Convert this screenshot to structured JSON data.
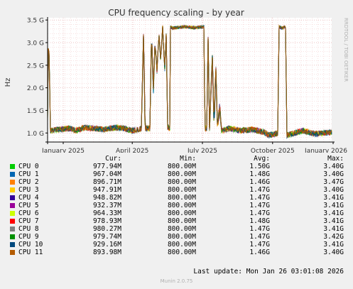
{
  "chart_data": {
    "type": "line",
    "title": "CPU frequency scaling - by year",
    "ylabel": "Hz",
    "side_label": "RRDTOOL / TOBI OETIKER",
    "yticks": [
      {
        "v": 1.0,
        "label": "1.0 G"
      },
      {
        "v": 1.5,
        "label": "1.5 G"
      },
      {
        "v": 2.0,
        "label": "2.0 G"
      },
      {
        "v": 2.5,
        "label": "2.5 G"
      },
      {
        "v": 3.0,
        "label": "3.0 G"
      },
      {
        "v": 3.5,
        "label": "3.5 G"
      }
    ],
    "xticks": [
      {
        "label": "January 2025",
        "t": 0.055
      },
      {
        "label": "April 2025",
        "t": 0.298
      },
      {
        "label": "July 2025",
        "t": 0.545
      },
      {
        "label": "October 2025",
        "t": 0.792
      },
      {
        "label": "January 2026",
        "t": 1.037
      }
    ],
    "ylim": [
      0.8,
      3.55
    ],
    "grid": true,
    "series": [
      {
        "name": "CPU 0",
        "color": "#00cc00"
      },
      {
        "name": "CPU 1",
        "color": "#0066b3"
      },
      {
        "name": "CPU 2",
        "color": "#ff8000"
      },
      {
        "name": "CPU 3",
        "color": "#ffcc00"
      },
      {
        "name": "CPU 4",
        "color": "#330099"
      },
      {
        "name": "CPU 5",
        "color": "#990099"
      },
      {
        "name": "CPU 6",
        "color": "#ccff00"
      },
      {
        "name": "CPU 7",
        "color": "#ff0000"
      },
      {
        "name": "CPU 8",
        "color": "#808080"
      },
      {
        "name": "CPU 9",
        "color": "#008f00"
      },
      {
        "name": "CPU 10",
        "color": "#00487d"
      },
      {
        "name": "CPU 11",
        "color": "#b35a00"
      }
    ],
    "profile": [
      [
        0.0,
        1.35
      ],
      [
        0.003,
        3.15
      ],
      [
        0.006,
        2.6
      ],
      [
        0.01,
        1.05
      ],
      [
        0.04,
        1.08
      ],
      [
        0.08,
        1.1
      ],
      [
        0.1,
        1.05
      ],
      [
        0.13,
        1.12
      ],
      [
        0.16,
        1.1
      ],
      [
        0.2,
        1.08
      ],
      [
        0.24,
        1.12
      ],
      [
        0.27,
        1.1
      ],
      [
        0.3,
        1.05
      ],
      [
        0.33,
        1.1
      ],
      [
        0.338,
        3.3
      ],
      [
        0.343,
        1.1
      ],
      [
        0.36,
        1.1
      ],
      [
        0.366,
        3.3
      ],
      [
        0.372,
        1.9
      ],
      [
        0.378,
        3.0
      ],
      [
        0.385,
        2.4
      ],
      [
        0.392,
        3.2
      ],
      [
        0.398,
        2.6
      ],
      [
        0.405,
        3.35
      ],
      [
        0.412,
        2.4
      ],
      [
        0.418,
        3.25
      ],
      [
        0.422,
        1.15
      ],
      [
        0.43,
        1.1
      ],
      [
        0.432,
        3.35
      ],
      [
        0.44,
        3.32
      ],
      [
        0.48,
        3.35
      ],
      [
        0.52,
        3.33
      ],
      [
        0.55,
        3.35
      ],
      [
        0.554,
        1.1
      ],
      [
        0.56,
        1.1
      ],
      [
        0.565,
        3.1
      ],
      [
        0.57,
        1.1
      ],
      [
        0.58,
        2.7
      ],
      [
        0.586,
        1.1
      ],
      [
        0.592,
        2.5
      ],
      [
        0.598,
        1.1
      ],
      [
        0.606,
        1.6
      ],
      [
        0.612,
        1.05
      ],
      [
        0.64,
        1.1
      ],
      [
        0.68,
        1.05
      ],
      [
        0.72,
        1.08
      ],
      [
        0.76,
        1.02
      ],
      [
        0.78,
        0.95
      ],
      [
        0.8,
        0.98
      ],
      [
        0.81,
        1.0
      ],
      [
        0.815,
        3.35
      ],
      [
        0.825,
        3.32
      ],
      [
        0.838,
        3.35
      ],
      [
        0.842,
        0.95
      ],
      [
        0.87,
        1.0
      ],
      [
        0.9,
        1.05
      ],
      [
        0.94,
        0.98
      ],
      [
        0.98,
        1.0
      ],
      [
        1.0,
        1.02
      ]
    ]
  },
  "legend": {
    "headers": [
      "Cur:",
      "Min:",
      "Avg:",
      "Max:"
    ],
    "rows": [
      [
        "CPU 0",
        "977.94M",
        "800.00M",
        "1.50G",
        "3.40G"
      ],
      [
        "CPU 1",
        "967.04M",
        "800.00M",
        "1.48G",
        "3.40G"
      ],
      [
        "CPU 2",
        "896.71M",
        "800.00M",
        "1.46G",
        "3.47G"
      ],
      [
        "CPU 3",
        "947.91M",
        "800.00M",
        "1.47G",
        "3.40G"
      ],
      [
        "CPU 4",
        "948.82M",
        "800.00M",
        "1.47G",
        "3.41G"
      ],
      [
        "CPU 5",
        "932.37M",
        "800.00M",
        "1.47G",
        "3.41G"
      ],
      [
        "CPU 6",
        "964.33M",
        "800.00M",
        "1.47G",
        "3.41G"
      ],
      [
        "CPU 7",
        "978.93M",
        "800.00M",
        "1.48G",
        "3.41G"
      ],
      [
        "CPU 8",
        "980.27M",
        "800.00M",
        "1.47G",
        "3.41G"
      ],
      [
        "CPU 9",
        "979.74M",
        "800.00M",
        "1.47G",
        "3.42G"
      ],
      [
        "CPU 10",
        "929.16M",
        "800.00M",
        "1.47G",
        "3.41G"
      ],
      [
        "CPU 11",
        "893.98M",
        "800.00M",
        "1.46G",
        "3.40G"
      ]
    ]
  },
  "last_update": "Last update: Mon Jan 26 03:01:08 2026",
  "footer": "Munin 2.0.75"
}
